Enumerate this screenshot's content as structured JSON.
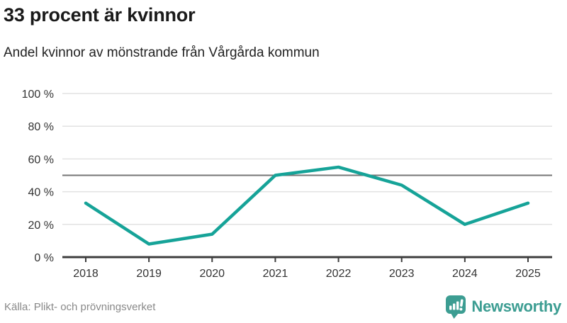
{
  "header": {
    "title": "33 procent är kvinnor",
    "subtitle": "Andel kvinnor av mönstrande från Vårgårda kommun"
  },
  "chart_data": {
    "type": "line",
    "x": [
      2018,
      2019,
      2020,
      2021,
      2022,
      2023,
      2024,
      2025
    ],
    "series": [
      {
        "name": "Andel kvinnor av mönstrande",
        "values": [
          33,
          8,
          14,
          50,
          55,
          44,
          20,
          33
        ]
      }
    ],
    "title": "33 procent är kvinnor",
    "subtitle": "Andel kvinnor av mönstrande från Vårgårda kommun",
    "xlabel": "",
    "ylabel": "",
    "ylim": [
      0,
      100
    ],
    "yticks": [
      0,
      20,
      40,
      60,
      80,
      100
    ],
    "ytick_suffix": " %",
    "reference_line": 50,
    "grid": true,
    "legend": "none",
    "colors": {
      "series": "#16a398",
      "grid": "#e2e2e2",
      "reference": "#757575",
      "axis": "#3d3d3d",
      "tick_text": "#333333"
    }
  },
  "footer": {
    "source": "Källa: Plikt- och prövningsverket",
    "brand": "Newsworthy",
    "brand_color": "#3c9d92"
  }
}
